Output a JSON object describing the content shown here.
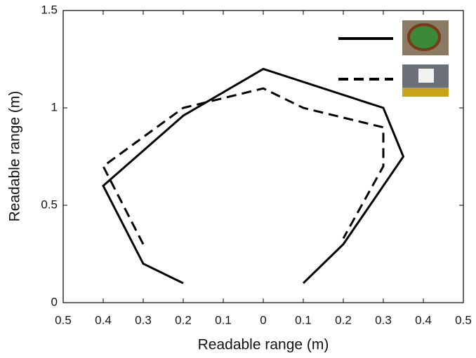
{
  "chart_data": {
    "type": "line",
    "xlabel": "Readable range (m)",
    "ylabel": "Readable range (m)",
    "xlim": [
      -0.5,
      0.5
    ],
    "xticks": [
      {
        "value": -0.5,
        "label": "0.5"
      },
      {
        "value": -0.4,
        "label": "0.4"
      },
      {
        "value": -0.3,
        "label": "0.3"
      },
      {
        "value": -0.2,
        "label": "0.2"
      },
      {
        "value": -0.1,
        "label": "0.1"
      },
      0,
      0.1,
      0.2,
      0.3,
      0.4,
      0.5
    ],
    "ylim": [
      0,
      1.5
    ],
    "yticks": [
      0,
      0.5,
      1,
      1.5
    ],
    "grid": false,
    "legend": "upper right",
    "series": [
      {
        "color": "#000000",
        "dash": "solid",
        "x": [
          -0.2,
          -0.3,
          -0.4,
          -0.2,
          0,
          0.3,
          0.35,
          0.2,
          0.1
        ],
        "values": [
          0.1,
          0.2,
          0.6,
          0.96,
          1.2,
          1.0,
          0.75,
          0.3,
          0.1
        ]
      },
      {
        "color": "#000000",
        "dash": "dashed",
        "x": [
          -0.3,
          -0.4,
          -0.2,
          0,
          0.1,
          0.3,
          0.3,
          0.2
        ],
        "values": [
          0.3,
          0.7,
          1.0,
          1.1,
          1.0,
          0.9,
          0.7,
          0.33
        ]
      }
    ]
  }
}
